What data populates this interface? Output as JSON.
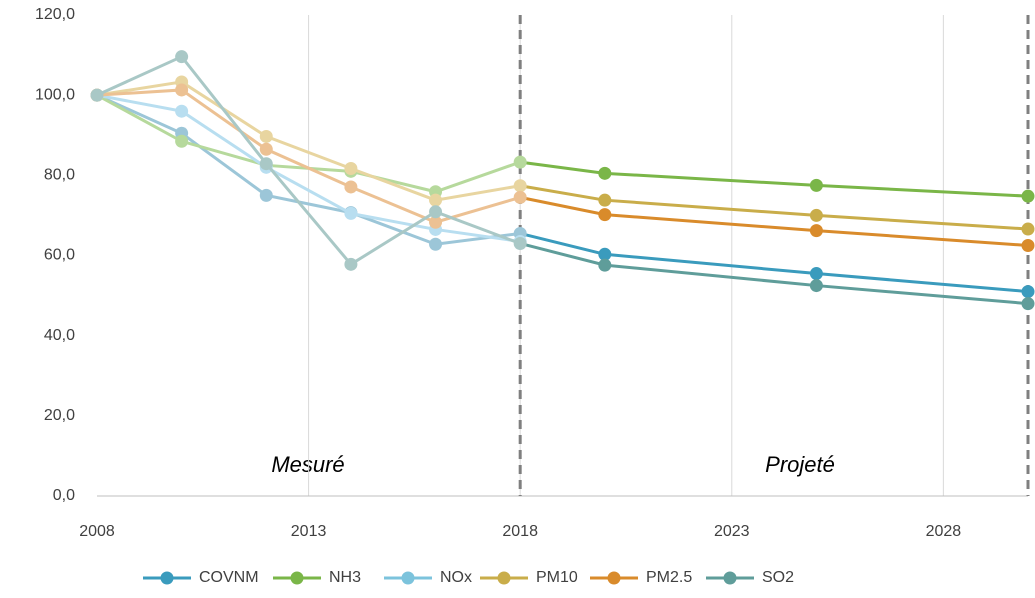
{
  "chart_data": {
    "type": "line",
    "x": [
      2008,
      2010,
      2012,
      2014,
      2016,
      2018,
      2020,
      2025,
      2030
    ],
    "series": [
      {
        "name": "COVNM",
        "color": "#3a9bbd",
        "light_color": "#9cc6d8",
        "values": [
          100,
          90.5,
          75,
          70.7,
          62.8,
          65.5,
          60.3,
          55.5,
          51
        ]
      },
      {
        "name": "NH3",
        "color": "#7ab648",
        "light_color": "#b6d99c",
        "values": [
          100,
          88.5,
          82.5,
          81,
          75.9,
          83.3,
          80.5,
          77.5,
          74.8
        ]
      },
      {
        "name": "NOx",
        "color": "#7cc3dc",
        "light_color": "#b8def0",
        "values": [
          100,
          96,
          82,
          70.5,
          66.5,
          63.5,
          null,
          null,
          null
        ]
      },
      {
        "name": "PM10",
        "color": "#c9ad4a",
        "light_color": "#e8d5a0",
        "values": [
          100,
          103.3,
          89.7,
          81.7,
          73.8,
          77.4,
          73.8,
          70,
          66.6
        ]
      },
      {
        "name": "PM2.5",
        "color": "#d98b2b",
        "light_color": "#ecc193",
        "values": [
          100,
          101.3,
          86.5,
          77.1,
          68.3,
          74.5,
          70.2,
          66.2,
          62.5
        ]
      },
      {
        "name": "SO2",
        "color": "#5f9d9a",
        "light_color": "#a9c8c6",
        "values": [
          100,
          109.6,
          82.9,
          57.8,
          70.9,
          63,
          57.6,
          52.5,
          48
        ]
      }
    ],
    "xlim": [
      2008,
      2030
    ],
    "xticks": [
      2008,
      2013,
      2018,
      2023,
      2028
    ],
    "ylim": [
      0,
      120
    ],
    "yticks": [
      {
        "value": 0,
        "label": "0,0"
      },
      {
        "value": 20,
        "label": "20,0"
      },
      {
        "value": 40,
        "label": "40,0"
      },
      {
        "value": 60,
        "label": "60,0"
      },
      {
        "value": 80,
        "label": "80,0"
      },
      {
        "value": 100,
        "label": "100,0"
      },
      {
        "value": 120,
        "label": "120,0"
      }
    ],
    "grid": "x",
    "legend": "bottom",
    "split_x": [
      2018,
      2030
    ],
    "annotations": [
      "Mesuré",
      "Projeté"
    ]
  }
}
